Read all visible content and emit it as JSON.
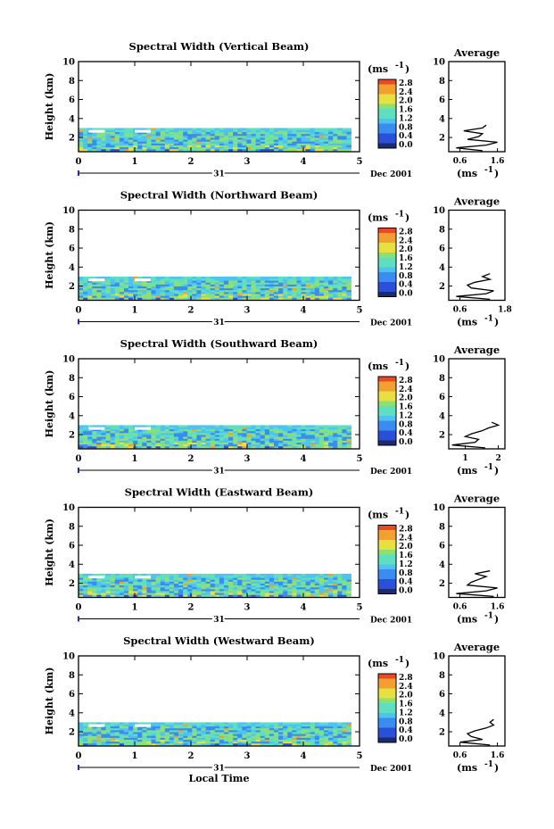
{
  "figure": {
    "x_unit_label": "Local Time",
    "day_label": "31",
    "month_label": "Dec 2001",
    "height_label": "Height (km)",
    "colorbar_unit": "(ms",
    "colorbar_unit_exp": "-1",
    "colorbar_unit_close": ")",
    "average_title": "Average",
    "average_unit": "(ms",
    "average_unit_exp": "-1",
    "average_unit_close": ")",
    "colorbar_ticks": [
      "2.8",
      "2.4",
      "2.0",
      "1.6",
      "1.2",
      "0.8",
      "0.4",
      "0.0"
    ],
    "colors": {
      "colormap": [
        "#1e2a6e",
        "#2a4fd8",
        "#3a8cf0",
        "#4fc3f0",
        "#5ee0c0",
        "#8ee070",
        "#e8e040",
        "#f3a030",
        "#e84a28"
      ],
      "axis": "#000000",
      "marker": "#2030a0"
    }
  },
  "chart_data": [
    {
      "type": "heatmap",
      "title": "Spectral Width (Vertical Beam)",
      "xlabel": "",
      "ylabel": "Height (km)",
      "x_ticks": [
        "0",
        "1",
        "2",
        "3",
        "4",
        "5"
      ],
      "y_ticks": [
        "2",
        "4",
        "6",
        "8",
        "10"
      ],
      "xlim": [
        0,
        5
      ],
      "ylim": [
        0.5,
        10
      ],
      "colorbar_range": [
        0.0,
        2.8
      ],
      "data_extent": {
        "x": [
          0,
          4.85
        ],
        "height": [
          0.6,
          3.0
        ]
      },
      "typical_value_range": [
        0.6,
        1.4
      ],
      "average_profile": {
        "title": "Average",
        "x_ticks": [
          "0.6",
          "1.6"
        ],
        "xlim": [
          0.3,
          1.8
        ],
        "heights": [
          0.6,
          0.9,
          1.2,
          1.5,
          1.8,
          2.1,
          2.4,
          2.7,
          3.0,
          3.3
        ],
        "values": [
          1.2,
          0.5,
          1.3,
          1.6,
          0.8,
          1.1,
          1.2,
          0.7,
          1.2,
          1.3
        ]
      }
    },
    {
      "type": "heatmap",
      "title": "Spectral Width (Northward Beam)",
      "xlabel": "",
      "ylabel": "Height (km)",
      "x_ticks": [
        "0",
        "1",
        "2",
        "3",
        "4",
        "5"
      ],
      "y_ticks": [
        "2",
        "4",
        "6",
        "8",
        "10"
      ],
      "xlim": [
        0,
        5
      ],
      "ylim": [
        0.5,
        10
      ],
      "colorbar_range": [
        0.0,
        2.8
      ],
      "data_extent": {
        "x": [
          0,
          4.85
        ],
        "height": [
          0.6,
          3.0
        ]
      },
      "typical_value_range": [
        0.6,
        1.6
      ],
      "average_profile": {
        "title": "Average",
        "x_ticks": [
          "0.6",
          "1.8"
        ],
        "xlim": [
          0.3,
          1.8
        ],
        "heights": [
          0.6,
          0.9,
          1.2,
          1.5,
          1.8,
          2.1,
          2.4,
          2.7,
          3.0,
          3.3
        ],
        "values": [
          1.4,
          0.5,
          1.3,
          1.5,
          0.9,
          0.8,
          1.0,
          1.4,
          1.2,
          1.4
        ]
      }
    },
    {
      "type": "heatmap",
      "title": "Spectral Width (Southward Beam)",
      "xlabel": "",
      "ylabel": "Height (km)",
      "x_ticks": [
        "0",
        "1",
        "2",
        "3",
        "4",
        "5"
      ],
      "y_ticks": [
        "2",
        "4",
        "6",
        "8",
        "10"
      ],
      "xlim": [
        0,
        5
      ],
      "ylim": [
        0.5,
        10
      ],
      "colorbar_range": [
        0.0,
        2.8
      ],
      "data_extent": {
        "x": [
          0,
          4.85
        ],
        "height": [
          0.6,
          3.0
        ]
      },
      "typical_value_range": [
        0.6,
        1.6
      ],
      "average_profile": {
        "title": "Average",
        "x_ticks": [
          "1",
          "2"
        ],
        "xlim": [
          0.5,
          2.2
        ],
        "heights": [
          0.6,
          0.9,
          1.2,
          1.5,
          1.8,
          2.1,
          2.4,
          2.7,
          3.0,
          3.3
        ],
        "values": [
          1.6,
          0.6,
          1.3,
          1.4,
          1.0,
          1.2,
          1.5,
          1.7,
          2.0,
          1.8
        ]
      }
    },
    {
      "type": "heatmap",
      "title": "Spectral Width (Eastward Beam)",
      "xlabel": "",
      "ylabel": "Height (km)",
      "x_ticks": [
        "0",
        "1",
        "2",
        "3",
        "4",
        "5"
      ],
      "y_ticks": [
        "2",
        "4",
        "6",
        "8",
        "10"
      ],
      "xlim": [
        0,
        5
      ],
      "ylim": [
        0.5,
        10
      ],
      "colorbar_range": [
        0.0,
        2.8
      ],
      "data_extent": {
        "x": [
          0,
          4.85
        ],
        "height": [
          0.6,
          3.0
        ]
      },
      "typical_value_range": [
        0.6,
        1.6
      ],
      "average_profile": {
        "title": "Average",
        "x_ticks": [
          "0.6",
          "1.6"
        ],
        "xlim": [
          0.3,
          1.8
        ],
        "heights": [
          0.6,
          0.9,
          1.2,
          1.5,
          1.8,
          2.1,
          2.4,
          2.7,
          3.0,
          3.3
        ],
        "values": [
          1.5,
          0.5,
          1.3,
          1.6,
          0.8,
          0.9,
          1.1,
          1.3,
          1.0,
          1.4
        ]
      }
    },
    {
      "type": "heatmap",
      "title": "Spectral Width (Westward Beam)",
      "xlabel": "Local Time",
      "ylabel": "Height (km)",
      "x_ticks": [
        "0",
        "1",
        "2",
        "3",
        "4",
        "5"
      ],
      "y_ticks": [
        "2",
        "4",
        "6",
        "8",
        "10"
      ],
      "xlim": [
        0,
        5
      ],
      "ylim": [
        0.5,
        10
      ],
      "colorbar_range": [
        0.0,
        2.8
      ],
      "data_extent": {
        "x": [
          0,
          4.85
        ],
        "height": [
          0.6,
          3.0
        ]
      },
      "typical_value_range": [
        0.6,
        1.6
      ],
      "average_profile": {
        "title": "Average",
        "x_ticks": [
          "0.6",
          "1.6"
        ],
        "xlim": [
          0.3,
          1.8
        ],
        "heights": [
          0.6,
          0.9,
          1.2,
          1.5,
          1.8,
          2.1,
          2.4,
          2.7,
          3.0,
          3.3
        ],
        "values": [
          1.4,
          0.6,
          1.2,
          0.9,
          0.8,
          1.0,
          1.3,
          1.5,
          1.4,
          1.5
        ]
      }
    }
  ]
}
